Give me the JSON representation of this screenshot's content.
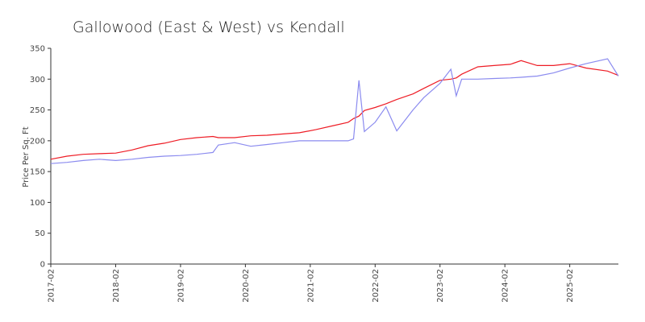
{
  "chart_data": {
    "type": "line",
    "title": "Gallowood (East & West) vs Kendall",
    "y_label": "Price Per Sq. Ft",
    "x": [
      "2017-02",
      "2017-05",
      "2017-08",
      "2017-11",
      "2018-02",
      "2018-05",
      "2018-08",
      "2018-11",
      "2019-02",
      "2019-05",
      "2019-08",
      "2019-09",
      "2019-12",
      "2020-03",
      "2020-06",
      "2020-09",
      "2020-12",
      "2021-03",
      "2021-06",
      "2021-09",
      "2021-10",
      "2021-11",
      "2021-12",
      "2022-02",
      "2022-04",
      "2022-06",
      "2022-09",
      "2022-11",
      "2023-02",
      "2023-04",
      "2023-05",
      "2023-06",
      "2023-09",
      "2023-12",
      "2024-03",
      "2024-05",
      "2024-08",
      "2024-11",
      "2025-02",
      "2025-05",
      "2025-09",
      "2025-11"
    ],
    "series": [
      {
        "color": "#ee1c25",
        "values": [
          170,
          175,
          178,
          179,
          180,
          185,
          192,
          196,
          202,
          205,
          207,
          205,
          205,
          208,
          209,
          211,
          213,
          218,
          224,
          230,
          236,
          240,
          249,
          254,
          260,
          267,
          276,
          285,
          298,
          300,
          302,
          308,
          320,
          322,
          324,
          330,
          322,
          322,
          325,
          318,
          313,
          306
        ]
      },
      {
        "color": "#8b8bef",
        "values": [
          163,
          165,
          168,
          170,
          168,
          170,
          173,
          175,
          176,
          178,
          181,
          193,
          197,
          191,
          194,
          197,
          200,
          200,
          200,
          200,
          203,
          298,
          215,
          230,
          255,
          216,
          250,
          270,
          293,
          316,
          273,
          300,
          300,
          301,
          302,
          303,
          305,
          310,
          318,
          325,
          333,
          305
        ]
      }
    ],
    "xlim": [
      "2017-02",
      "2025-11"
    ],
    "xticks": [
      "2017-02",
      "2018-02",
      "2019-02",
      "2020-02",
      "2021-02",
      "2022-02",
      "2023-02",
      "2024-02",
      "2025-02"
    ],
    "ylim": [
      0,
      350
    ],
    "yticks": [
      0,
      50,
      100,
      150,
      200,
      250,
      300,
      350
    ]
  }
}
